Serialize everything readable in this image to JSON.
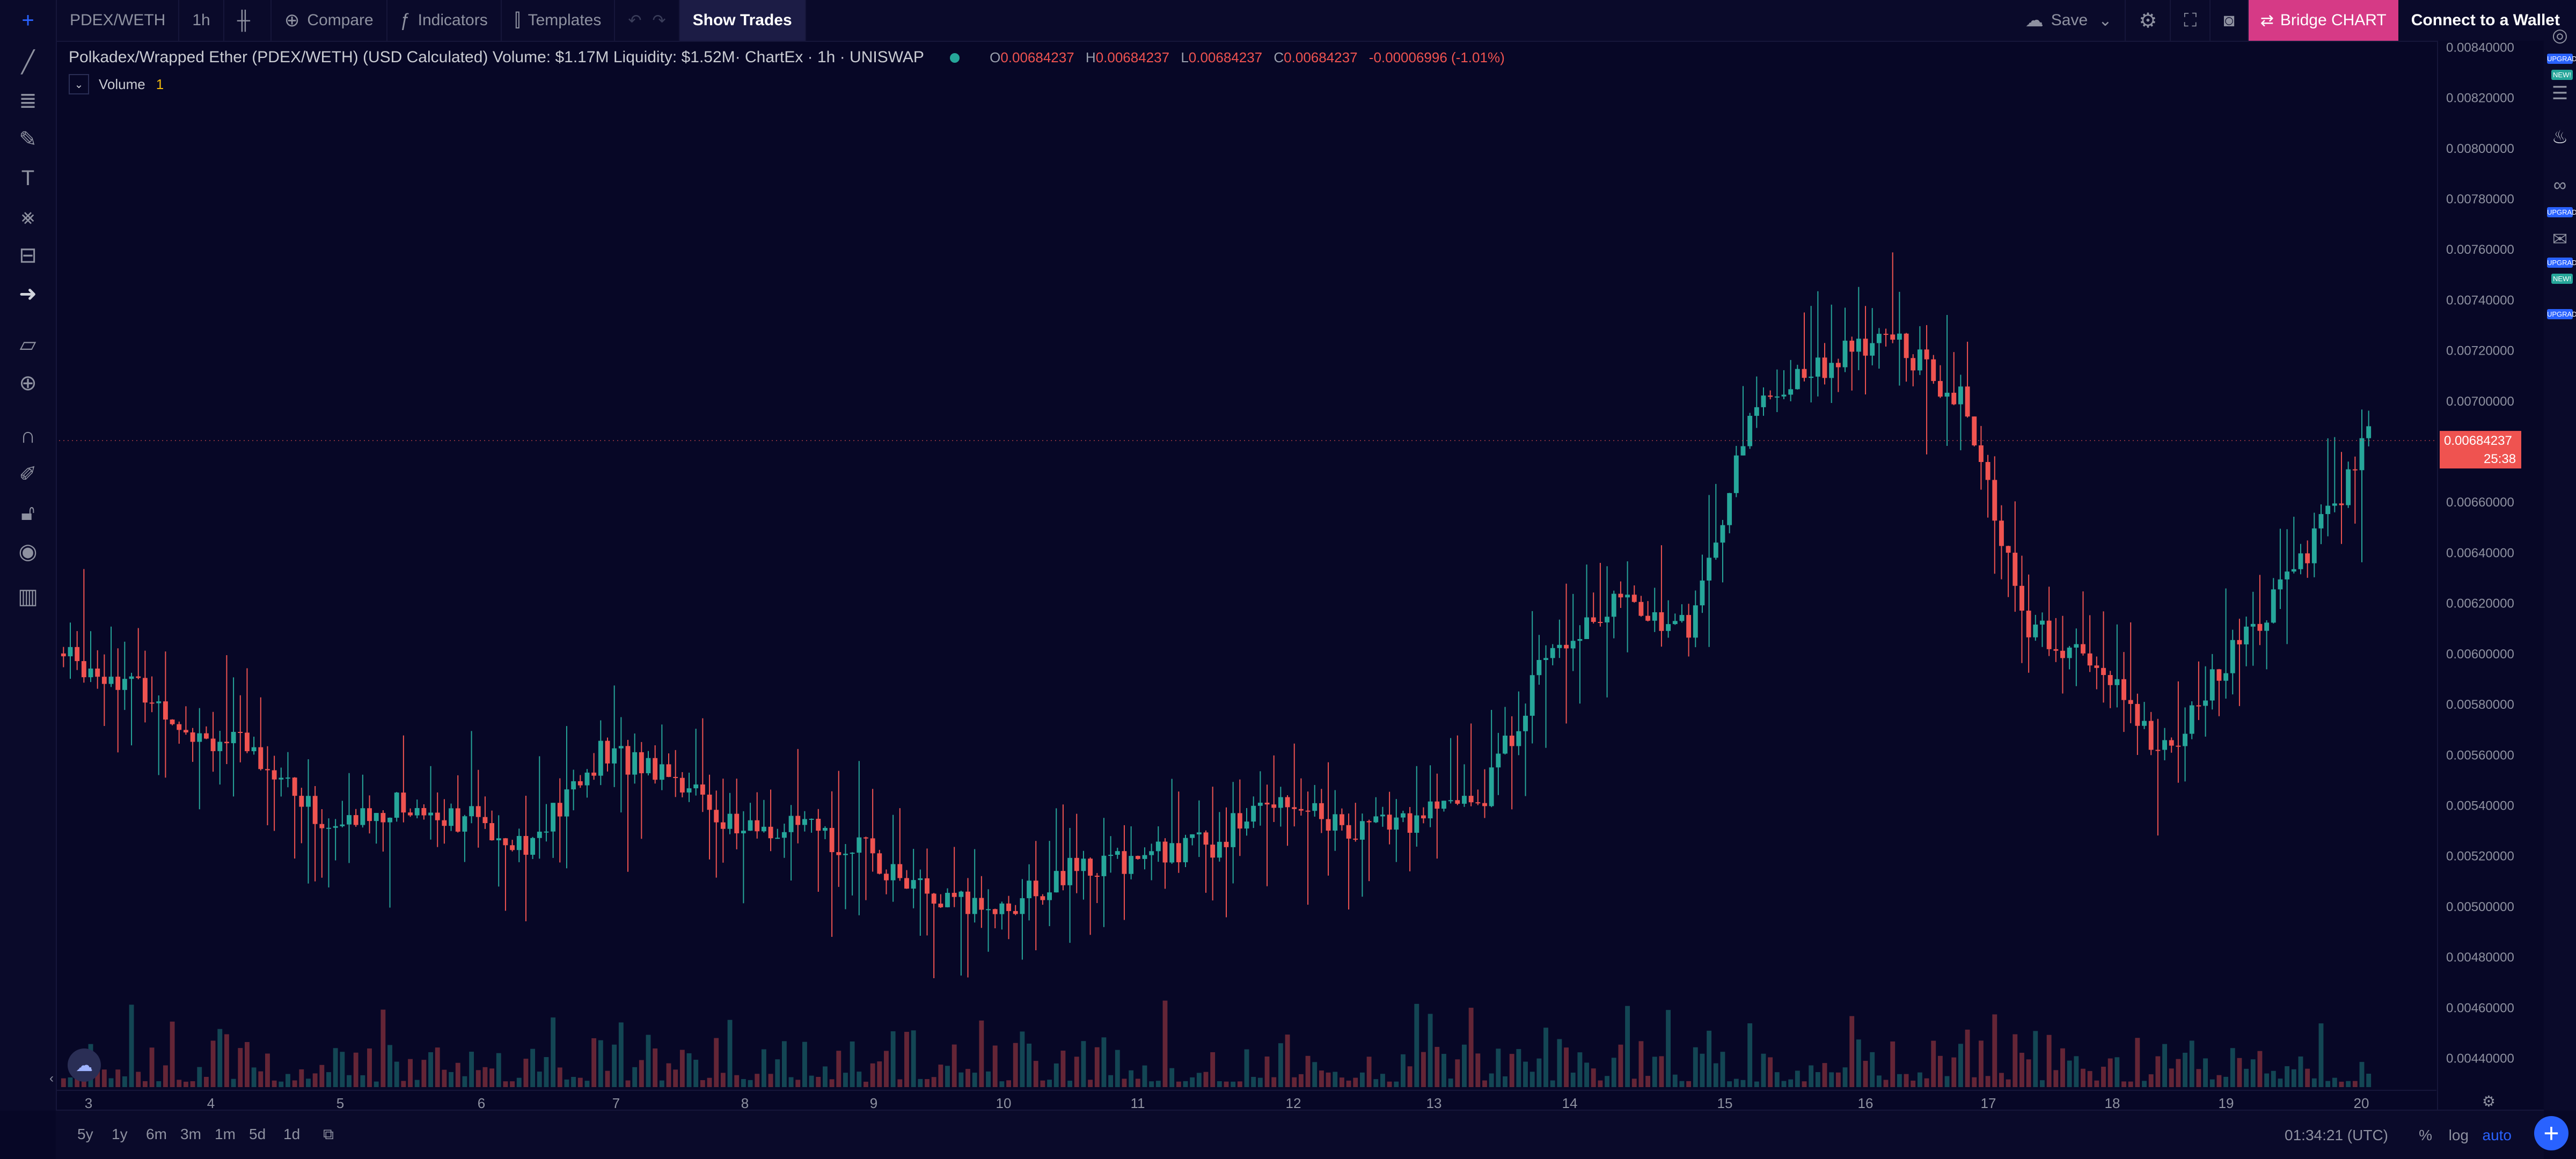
{
  "toolbar": {
    "symbol": "PDEX/WETH",
    "interval": "1h",
    "compare": "Compare",
    "indicators": "Indicators",
    "templates": "Templates",
    "show_trades": "Show Trades",
    "save": "Save",
    "bridge": "Bridge CHART",
    "wallet": "Connect to a Wallet"
  },
  "legend": {
    "title": "Polkadex/Wrapped Ether (PDEX/WETH) (USD Calculated) Volume: $1.17M Liquidity: $1.52M· ChartEx · 1h · UNISWAP",
    "o_label": "O",
    "o": "0.00684237",
    "h_label": "H",
    "h": "0.00684237",
    "l_label": "L",
    "l": "0.00684237",
    "c_label": "C",
    "c": "0.00684237",
    "change": "-0.00006996 (-1.01%)",
    "volume_label": "Volume",
    "volume_value": "1"
  },
  "price_tag": {
    "price": "0.00684237",
    "countdown": "25:38"
  },
  "bottombar": {
    "ranges": [
      "5y",
      "1y",
      "6m",
      "3m",
      "1m",
      "5d",
      "1d"
    ],
    "clock": "01:34:21 (UTC)",
    "percent": "%",
    "log": "log",
    "auto": "auto"
  },
  "badges": {
    "upgrade": "UPGRADE",
    "new": "NEW!"
  },
  "colors": {
    "up": "#26a69a",
    "down": "#ef5350",
    "background": "#070726",
    "accent": "#d63a86",
    "blue": "#2962ff"
  },
  "icons": [
    "crosshair-icon",
    "trend-line-icon",
    "brush-icon",
    "text-icon",
    "pattern-icon",
    "measure-icon",
    "zoom-icon",
    "magnet-icon",
    "lock-icon",
    "eye-icon",
    "trash-icon",
    "settings-icon",
    "fullscreen-icon",
    "camera-icon"
  ],
  "chart_data": {
    "type": "candlestick",
    "price_axis": {
      "ticks": [
        "0.00840000",
        "0.00820000",
        "0.00800000",
        "0.00780000",
        "0.00760000",
        "0.00740000",
        "0.00720000",
        "0.00700000",
        "0.00680000",
        "0.00660000",
        "0.00640000",
        "0.00620000",
        "0.00600000",
        "0.00580000",
        "0.00560000",
        "0.00540000",
        "0.00520000",
        "0.00500000",
        "0.00480000",
        "0.00460000",
        "0.00440000"
      ],
      "ylim": [
        0.00428,
        0.00842
      ]
    },
    "time_axis": {
      "ticks": [
        "3",
        "4",
        "5",
        "6",
        "7",
        "8",
        "9",
        "10",
        "11",
        "12",
        "13",
        "14",
        "15",
        "16",
        "17",
        "18",
        "19",
        "20"
      ]
    },
    "candle_count": 340,
    "ohlc_anchor": [
      [
        0,
        0.006
      ],
      [
        10,
        0.0059
      ],
      [
        20,
        0.0057
      ],
      [
        30,
        0.0056
      ],
      [
        40,
        0.0053
      ],
      [
        50,
        0.0054
      ],
      [
        60,
        0.00535
      ],
      [
        70,
        0.00525
      ],
      [
        80,
        0.0056
      ],
      [
        90,
        0.00555
      ],
      [
        100,
        0.0053
      ],
      [
        110,
        0.0053
      ],
      [
        120,
        0.0052
      ],
      [
        130,
        0.005
      ],
      [
        140,
        0.005
      ],
      [
        150,
        0.00515
      ],
      [
        160,
        0.0052
      ],
      [
        170,
        0.00525
      ],
      [
        180,
        0.00545
      ],
      [
        190,
        0.0053
      ],
      [
        200,
        0.00535
      ],
      [
        210,
        0.00545
      ],
      [
        220,
        0.00605
      ],
      [
        230,
        0.0062
      ],
      [
        240,
        0.0061
      ],
      [
        250,
        0.007
      ],
      [
        260,
        0.00715
      ],
      [
        270,
        0.00725
      ],
      [
        280,
        0.007
      ],
      [
        290,
        0.0061
      ],
      [
        300,
        0.00595
      ],
      [
        310,
        0.0056
      ],
      [
        320,
        0.006
      ],
      [
        330,
        0.00635
      ],
      [
        340,
        0.00684237
      ]
    ],
    "volume_axis_max": 1.0
  }
}
